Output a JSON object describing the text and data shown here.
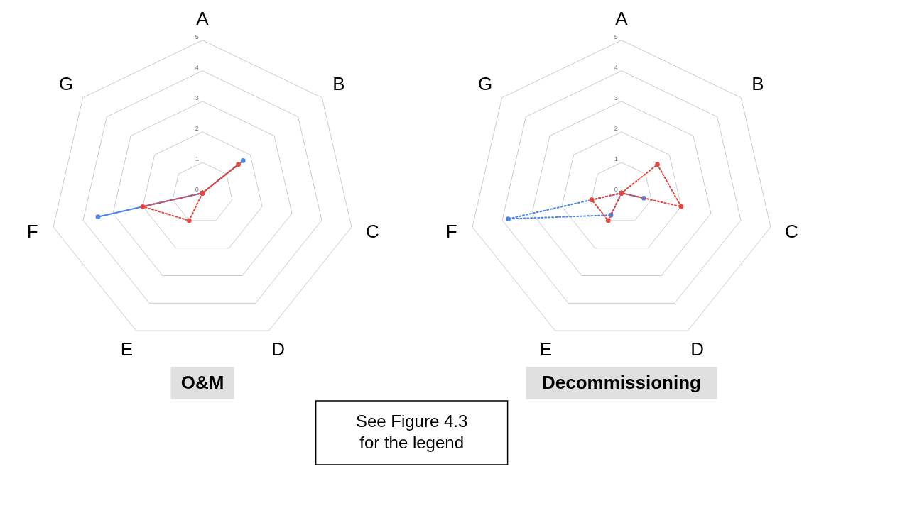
{
  "chart_data": [
    {
      "type": "radar",
      "title": "O&M",
      "categories": [
        "A",
        "B",
        "C",
        "D",
        "E",
        "F",
        "G"
      ],
      "ylim": [
        0,
        5
      ],
      "yticks": [
        0,
        1,
        2,
        3,
        4,
        5
      ],
      "grid": true,
      "marker": "circle",
      "annotations": [
        "See Figure 4.3 for the legend"
      ],
      "series": [
        {
          "color": "#4a86e8",
          "line_style": "solid",
          "values": [
            0,
            1.7,
            0,
            0,
            0,
            3.5,
            0
          ]
        },
        {
          "color": "#e8453c",
          "line_style": "dotted",
          "values": [
            0,
            1.5,
            0,
            0,
            1,
            2,
            0
          ]
        }
      ]
    },
    {
      "type": "radar",
      "title": "Decommissioning",
      "categories": [
        "A",
        "B",
        "C",
        "D",
        "E",
        "F",
        "G"
      ],
      "ylim": [
        0,
        5
      ],
      "yticks": [
        0,
        1,
        2,
        3,
        4,
        5
      ],
      "grid": true,
      "marker": "circle",
      "series": [
        {
          "color": "#4a86e8",
          "line_style": "dotted",
          "values": [
            0,
            0,
            0.75,
            0,
            0.8,
            3.8,
            0
          ]
        },
        {
          "color": "#e8453c",
          "line_style": "dotted",
          "values": [
            0,
            1.5,
            2,
            0,
            1,
            1,
            0
          ]
        }
      ]
    }
  ]
}
